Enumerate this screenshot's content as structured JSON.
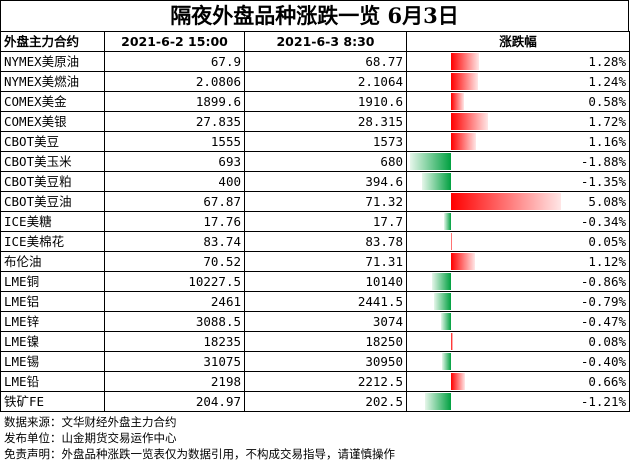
{
  "title": "隔夜外盘品种涨跌一览 6月3日",
  "headers": [
    "外盘主力合约",
    "2021-6-2 15:00",
    "2021-6-3 8:30",
    "涨跌幅"
  ],
  "rows": [
    {
      "name": "NYMEX美原油",
      "prev": "67.9",
      "curr": "68.77",
      "change": "1.28%",
      "change_value": 1.28
    },
    {
      "name": "NYMEX美燃油",
      "prev": "2.0806",
      "curr": "2.1064",
      "change": "1.24%",
      "change_value": 1.24
    },
    {
      "name": "COMEX美金",
      "prev": "1899.6",
      "curr": "1910.6",
      "change": "0.58%",
      "change_value": 0.58
    },
    {
      "name": "COMEX美银",
      "prev": "27.835",
      "curr": "28.315",
      "change": "1.72%",
      "change_value": 1.72
    },
    {
      "name": "CBOT美豆",
      "prev": "1555",
      "curr": "1573",
      "change": "1.16%",
      "change_value": 1.16
    },
    {
      "name": "CBOT美玉米",
      "prev": "693",
      "curr": "680",
      "change": "-1.88%",
      "change_value": -1.88
    },
    {
      "name": "CBOT美豆粕",
      "prev": "400",
      "curr": "394.6",
      "change": "-1.35%",
      "change_value": -1.35
    },
    {
      "name": "CBOT美豆油",
      "prev": "67.87",
      "curr": "71.32",
      "change": "5.08%",
      "change_value": 5.08
    },
    {
      "name": "ICE美糖",
      "prev": "17.76",
      "curr": "17.7",
      "change": "-0.34%",
      "change_value": -0.34
    },
    {
      "name": "ICE美棉花",
      "prev": "83.74",
      "curr": "83.78",
      "change": "0.05%",
      "change_value": 0.05
    },
    {
      "name": "布伦油",
      "prev": "70.52",
      "curr": "71.31",
      "change": "1.12%",
      "change_value": 1.12
    },
    {
      "name": "LME铜",
      "prev": "10227.5",
      "curr": "10140",
      "change": "-0.86%",
      "change_value": -0.86
    },
    {
      "name": "LME铝",
      "prev": "2461",
      "curr": "2441.5",
      "change": "-0.79%",
      "change_value": -0.79
    },
    {
      "name": "LME锌",
      "prev": "3088.5",
      "curr": "3074",
      "change": "-0.47%",
      "change_value": -0.47
    },
    {
      "name": "LME镍",
      "prev": "18235",
      "curr": "18250",
      "change": "0.08%",
      "change_value": 0.08
    },
    {
      "name": "LME锡",
      "prev": "31075",
      "curr": "30950",
      "change": "-0.40%",
      "change_value": -0.4
    },
    {
      "name": "LME铅",
      "prev": "2198",
      "curr": "2212.5",
      "change": "0.66%",
      "change_value": 0.66
    },
    {
      "name": "铁矿FE",
      "prev": "204.97",
      "curr": "202.5",
      "change": "-1.21%",
      "change_value": -1.21
    }
  ],
  "footer": {
    "source": "数据来源：文华财经外盘主力合约",
    "publisher": "发布单位：山金期货交易运作中心",
    "disclaimer": "免责声明：外盘品种涨跌一览表仅为数据引用，不构成交易指导，请谨慎操作"
  },
  "colors": {
    "up": "#ff0000",
    "down": "#00a040"
  }
}
